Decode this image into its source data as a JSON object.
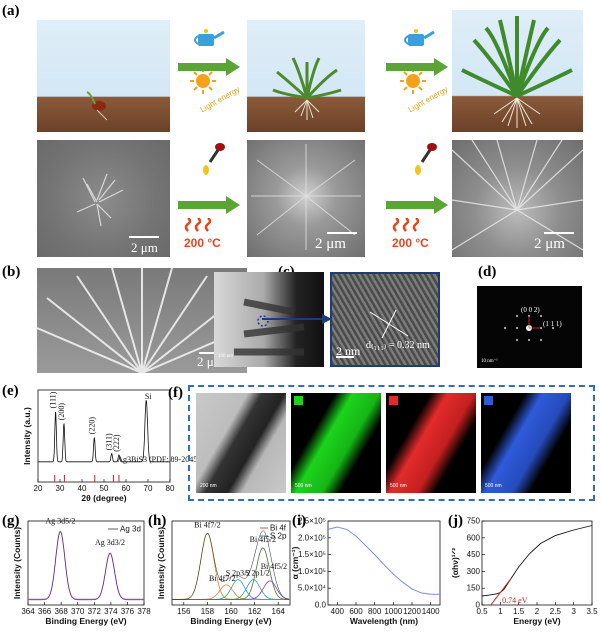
{
  "panels": {
    "a": {
      "label": "(a)",
      "light_energy": "Light energy",
      "temperature": "200 °C",
      "scale_bar": "2 μm"
    },
    "b": {
      "label": "(b)",
      "scale_bar": "2 μm"
    },
    "c": {
      "label": "(c)",
      "scale_bar_small": "100 nm",
      "scale_bar": "2 nm",
      "d_spacing": "d₍₁₁₁₎ = 0.32 nm"
    },
    "d": {
      "label": "(d)",
      "spot_1": "(0 0 2)",
      "spot_2": "(1 1 1)",
      "scale_bar": "10 nm⁻¹"
    },
    "e": {
      "label": "(e)"
    },
    "f": {
      "label": "(f)",
      "scale_bars": [
        "200 nm",
        "500 nm",
        "500 nm",
        "500 nm"
      ],
      "colors": [
        "#1bd41b",
        "#e32b2b",
        "#2f5bdb"
      ]
    },
    "g": {
      "label": "(g)"
    },
    "h": {
      "label": "(h)"
    },
    "i": {
      "label": "(i)"
    },
    "j": {
      "label": "(j)"
    }
  },
  "chart_data": [
    {
      "id": "e",
      "type": "line",
      "xlabel": "2θ (degree)",
      "ylabel": "Intensity (a.u.)",
      "xlim": [
        20,
        80
      ],
      "xticks": [
        20,
        30,
        40,
        50,
        60,
        70,
        80
      ],
      "legend": "Ag3BiS3 (PDF: 89-2045)",
      "peaks": [
        {
          "x": 28.0,
          "label": "(111)"
        },
        {
          "x": 31.8,
          "label": "(200)"
        },
        {
          "x": 45.6,
          "label": "(220)"
        },
        {
          "x": 53.5,
          "label": "(311)"
        },
        {
          "x": 56.8,
          "label": "(222)"
        },
        {
          "x": 69.2,
          "label": "Si"
        }
      ],
      "reference_lines": [
        27.6,
        32.0,
        45.8,
        54.3,
        56.8
      ]
    },
    {
      "id": "g",
      "type": "line",
      "xlabel": "Binding Energy (eV)",
      "ylabel": "Intensity (Counts)",
      "xlim": [
        364,
        378
      ],
      "xticks": [
        364,
        366,
        368,
        370,
        372,
        374,
        376,
        378
      ],
      "legend": "Ag 3d",
      "peaks": [
        {
          "x": 367.9,
          "label": "Ag 3d5/2"
        },
        {
          "x": 373.9,
          "label": "Ag 3d3/2"
        }
      ]
    },
    {
      "id": "h",
      "type": "line",
      "xlabel": "Binding Energy (eV)",
      "ylabel": "Intensity (Counts)",
      "xlim": [
        155,
        165
      ],
      "xticks": [
        156,
        158,
        160,
        162,
        164
      ],
      "legend": [
        "Bi 4f",
        "S 2p"
      ],
      "peaks": [
        {
          "x": 158.0,
          "label": "Bi 4f7/2"
        },
        {
          "x": 159.6,
          "label": "Bi 4f7/2"
        },
        {
          "x": 160.6,
          "label": "S 2p3/2"
        },
        {
          "x": 161.9,
          "label": "S 2p1/2"
        },
        {
          "x": 162.7,
          "label": "Bi 4f5/2"
        },
        {
          "x": 163.3,
          "label": "Bi 4f5/2"
        }
      ]
    },
    {
      "id": "i",
      "type": "line",
      "xlabel": "Wavelength (nm)",
      "ylabel": "α (cm⁻¹)",
      "xlim": [
        300,
        1500
      ],
      "xticks": [
        400,
        600,
        800,
        1000,
        1200,
        1400
      ],
      "ylim": [
        0,
        250000
      ],
      "yticks_label": [
        "0.0",
        "5.0×10⁴",
        "1.0×10⁵",
        "1.5×10⁵",
        "2.0×10⁵",
        "2.5×10⁵"
      ],
      "x": [
        300,
        400,
        500,
        600,
        700,
        800,
        900,
        1000,
        1100,
        1200,
        1300,
        1400,
        1500
      ],
      "y": [
        225000,
        232000,
        225000,
        205000,
        178000,
        150000,
        120000,
        92000,
        68000,
        48000,
        36000,
        32000,
        32000
      ]
    },
    {
      "id": "j",
      "type": "line",
      "xlabel": "Energy (eV)",
      "ylabel": "(αhν)¹ᐟ²",
      "xlim": [
        0.5,
        3.5
      ],
      "xticks": [
        0.5,
        1.0,
        1.5,
        2.0,
        2.5,
        3.0,
        3.5
      ],
      "ylim": [
        0,
        750
      ],
      "yticks": [
        0,
        150,
        300,
        450,
        600,
        750
      ],
      "x": [
        0.5,
        0.7,
        0.9,
        1.0,
        1.1,
        1.3,
        1.5,
        1.8,
        2.1,
        2.5,
        3.0,
        3.5
      ],
      "y": [
        80,
        88,
        100,
        112,
        140,
        240,
        340,
        460,
        550,
        620,
        670,
        710
      ],
      "bandgap_label": "0.74 eV",
      "bandgap_x": 0.74
    }
  ]
}
